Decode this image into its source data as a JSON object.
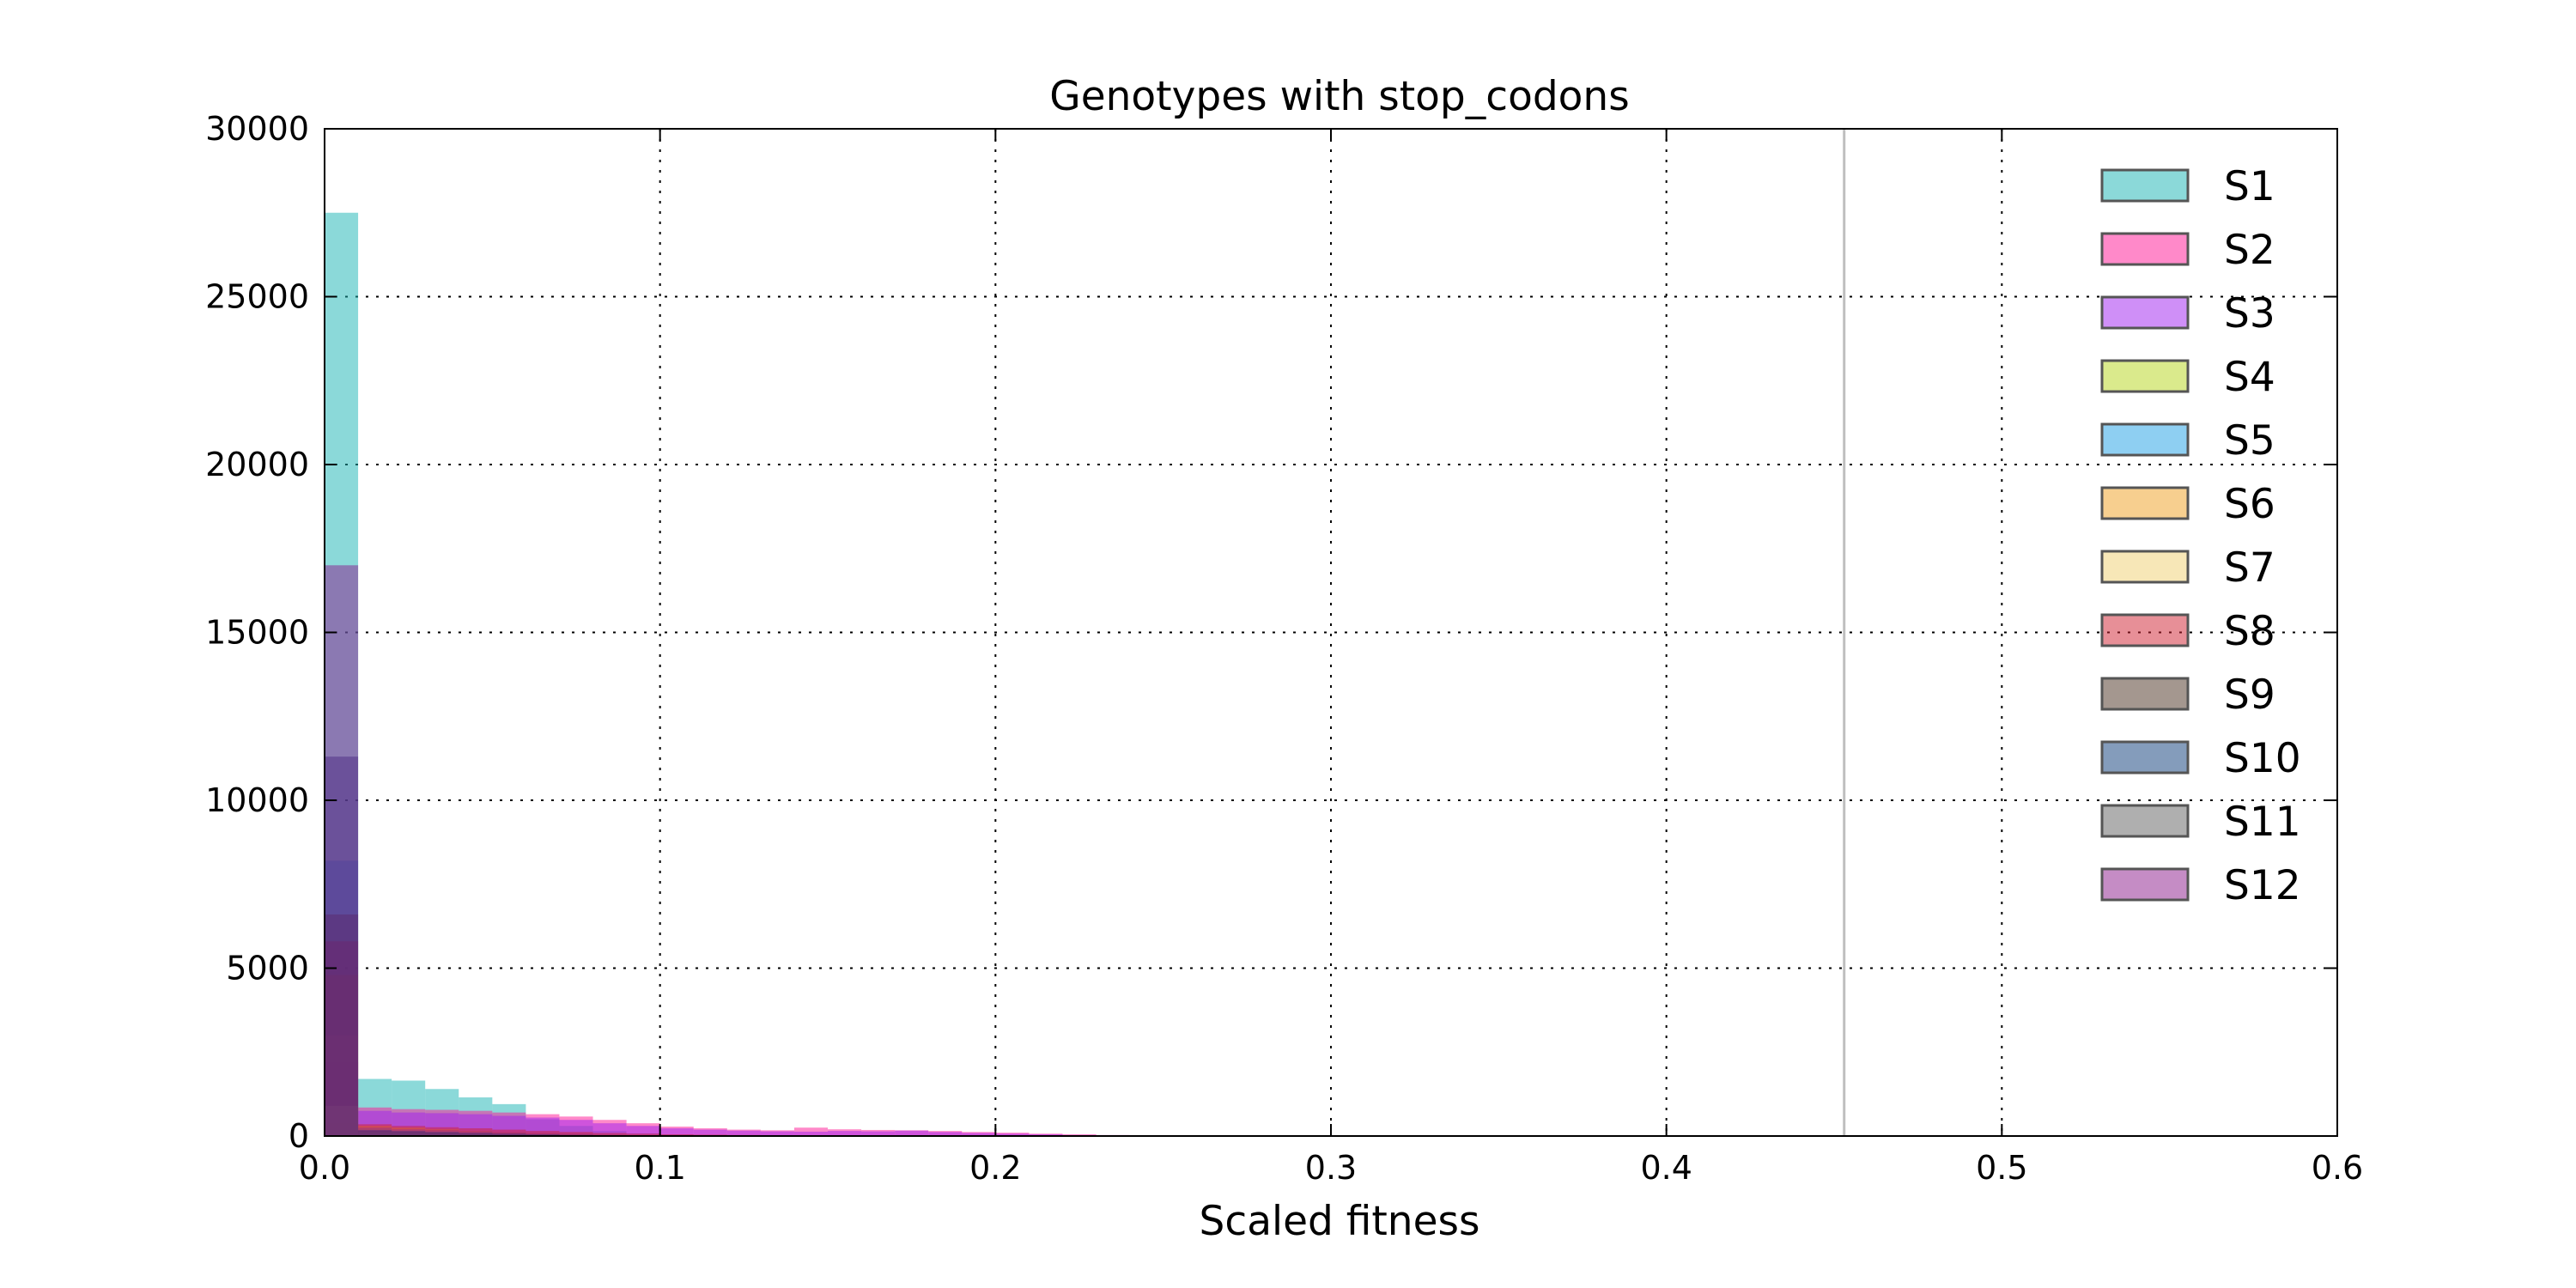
{
  "chart_data": {
    "type": "bar",
    "subtype": "overlaid-histogram",
    "title": "Genotypes with stop_codons",
    "xlabel": "Scaled fitness",
    "ylabel": "",
    "xlim": [
      0.0,
      0.6
    ],
    "ylim": [
      0,
      30000
    ],
    "xticks": [
      "0.0",
      "0.1",
      "0.2",
      "0.3",
      "0.4",
      "0.5",
      "0.6"
    ],
    "yticks": [
      "0",
      "5000",
      "10000",
      "15000",
      "20000",
      "25000",
      "30000"
    ],
    "grid": true,
    "legend_position": "top-right",
    "vertical_reference_line": 0.453,
    "bin_width": 0.01,
    "bin_starts": [
      0.0,
      0.01,
      0.02,
      0.03,
      0.04,
      0.05,
      0.06,
      0.07,
      0.08,
      0.09,
      0.1,
      0.11,
      0.12,
      0.13,
      0.14,
      0.15,
      0.16,
      0.17,
      0.18,
      0.19,
      0.2,
      0.21,
      0.22,
      0.23,
      0.24
    ],
    "series": [
      {
        "name": "S1",
        "color": "#17b3b3",
        "values": [
          27500,
          1700,
          1650,
          1400,
          1150,
          950,
          500,
          300,
          150,
          80,
          50,
          30,
          20,
          10,
          5,
          0,
          0,
          0,
          0,
          0,
          0,
          0,
          0,
          0,
          0
        ]
      },
      {
        "name": "S2",
        "color": "#ff1493",
        "values": [
          2200,
          850,
          800,
          780,
          750,
          700,
          650,
          580,
          480,
          380,
          280,
          230,
          190,
          170,
          250,
          200,
          180,
          170,
          150,
          120,
          100,
          70,
          50,
          30,
          10
        ]
      },
      {
        "name": "S3",
        "color": "#a020f0",
        "values": [
          1100,
          750,
          700,
          680,
          650,
          600,
          550,
          480,
          380,
          300,
          230,
          190,
          160,
          140,
          130,
          150,
          140,
          160,
          120,
          90,
          70,
          50,
          30,
          20,
          5
        ]
      },
      {
        "name": "S4",
        "color": "#b5d61a",
        "values": [
          400,
          200,
          150,
          100,
          70,
          50,
          30,
          20,
          10,
          5,
          0,
          0,
          0,
          0,
          0,
          0,
          0,
          0,
          0,
          0,
          0,
          0,
          0,
          0,
          0
        ]
      },
      {
        "name": "S5",
        "color": "#1ea0e6",
        "values": [
          8200,
          200,
          150,
          120,
          90,
          60,
          40,
          25,
          15,
          10,
          5,
          0,
          0,
          0,
          0,
          0,
          0,
          0,
          0,
          0,
          0,
          0,
          0,
          0,
          0
        ]
      },
      {
        "name": "S6",
        "color": "#f0a020",
        "values": [
          4800,
          300,
          250,
          200,
          150,
          110,
          80,
          60,
          40,
          25,
          15,
          10,
          5,
          0,
          0,
          0,
          0,
          0,
          0,
          0,
          0,
          0,
          0,
          0,
          0
        ]
      },
      {
        "name": "S7",
        "color": "#f0d070",
        "values": [
          3000,
          250,
          200,
          150,
          100,
          70,
          50,
          30,
          20,
          10,
          5,
          0,
          0,
          0,
          0,
          0,
          0,
          0,
          0,
          0,
          0,
          0,
          0,
          0,
          0
        ]
      },
      {
        "name": "S8",
        "color": "#d02030",
        "values": [
          5800,
          350,
          300,
          260,
          230,
          190,
          150,
          120,
          90,
          70,
          50,
          40,
          30,
          20,
          10,
          5,
          0,
          0,
          0,
          0,
          0,
          0,
          0,
          0,
          0
        ]
      },
      {
        "name": "S9",
        "color": "#4a3020",
        "values": [
          6600,
          150,
          120,
          100,
          80,
          60,
          40,
          25,
          15,
          10,
          5,
          0,
          0,
          0,
          0,
          0,
          0,
          0,
          0,
          0,
          0,
          0,
          0,
          0,
          0
        ]
      },
      {
        "name": "S10",
        "color": "#0a3a78",
        "values": [
          11300,
          180,
          150,
          120,
          90,
          70,
          50,
          35,
          25,
          15,
          10,
          5,
          0,
          0,
          0,
          0,
          0,
          0,
          0,
          0,
          0,
          0,
          0,
          0,
          0
        ]
      },
      {
        "name": "S11",
        "color": "#606060",
        "values": [
          900,
          120,
          100,
          80,
          60,
          45,
          30,
          20,
          10,
          5,
          0,
          0,
          0,
          0,
          0,
          0,
          0,
          0,
          0,
          0,
          0,
          0,
          0,
          0,
          0
        ]
      },
      {
        "name": "S12",
        "color": "#8b1a8b",
        "values": [
          17000,
          250,
          200,
          170,
          140,
          110,
          80,
          60,
          40,
          25,
          15,
          10,
          5,
          0,
          0,
          0,
          0,
          0,
          0,
          0,
          0,
          0,
          0,
          0,
          0
        ]
      }
    ]
  }
}
